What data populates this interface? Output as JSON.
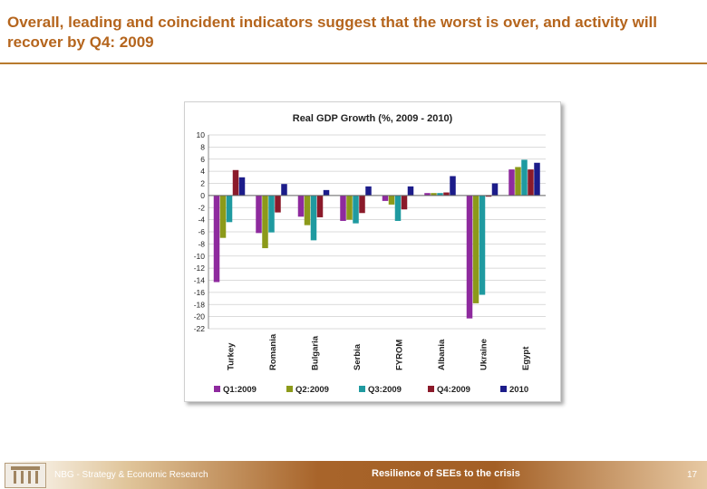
{
  "slide": {
    "title": "Overall, leading and coincident indicators suggest that the worst is over, and activity will recover by Q4: 2009"
  },
  "footer": {
    "left_text": "NBG - Strategy & Economic Research",
    "center_text": "Resilience of SEEs to the crisis",
    "page_number": "17"
  },
  "chart_data": {
    "type": "bar",
    "title": "Real GDP Growth (%, 2009 - 2010)",
    "xlabel": "",
    "ylabel": "",
    "ylim": [
      -22,
      10
    ],
    "ytick_step": 2,
    "grid": true,
    "legend": "bottom",
    "categories": [
      "Turkey",
      "Romania",
      "Bulgaria",
      "Serbia",
      "FYROM",
      "Albania",
      "Ukraine",
      "Egypt"
    ],
    "series": [
      {
        "name": "Q1:2009",
        "color": "#8e2a9e",
        "values": [
          -14.3,
          -6.2,
          -3.5,
          -4.2,
          -0.9,
          0.4,
          -20.3,
          4.3
        ]
      },
      {
        "name": "Q2:2009",
        "color": "#8c9a1a",
        "values": [
          -7.0,
          -8.7,
          -4.9,
          -4.0,
          -1.5,
          0.4,
          -17.8,
          4.7
        ]
      },
      {
        "name": "Q3:2009",
        "color": "#1f9aa0",
        "values": [
          -4.4,
          -6.1,
          -7.4,
          -4.6,
          -4.2,
          0.4,
          -16.4,
          5.9
        ]
      },
      {
        "name": "Q4:2009",
        "color": "#8b1a2a",
        "values": [
          4.2,
          -2.8,
          -3.6,
          -2.9,
          -2.3,
          0.5,
          -0.2,
          4.3
        ]
      },
      {
        "name": "2010",
        "color": "#1c1c8a",
        "values": [
          3.0,
          1.9,
          0.9,
          1.5,
          1.5,
          3.2,
          2.0,
          5.4
        ]
      }
    ]
  }
}
